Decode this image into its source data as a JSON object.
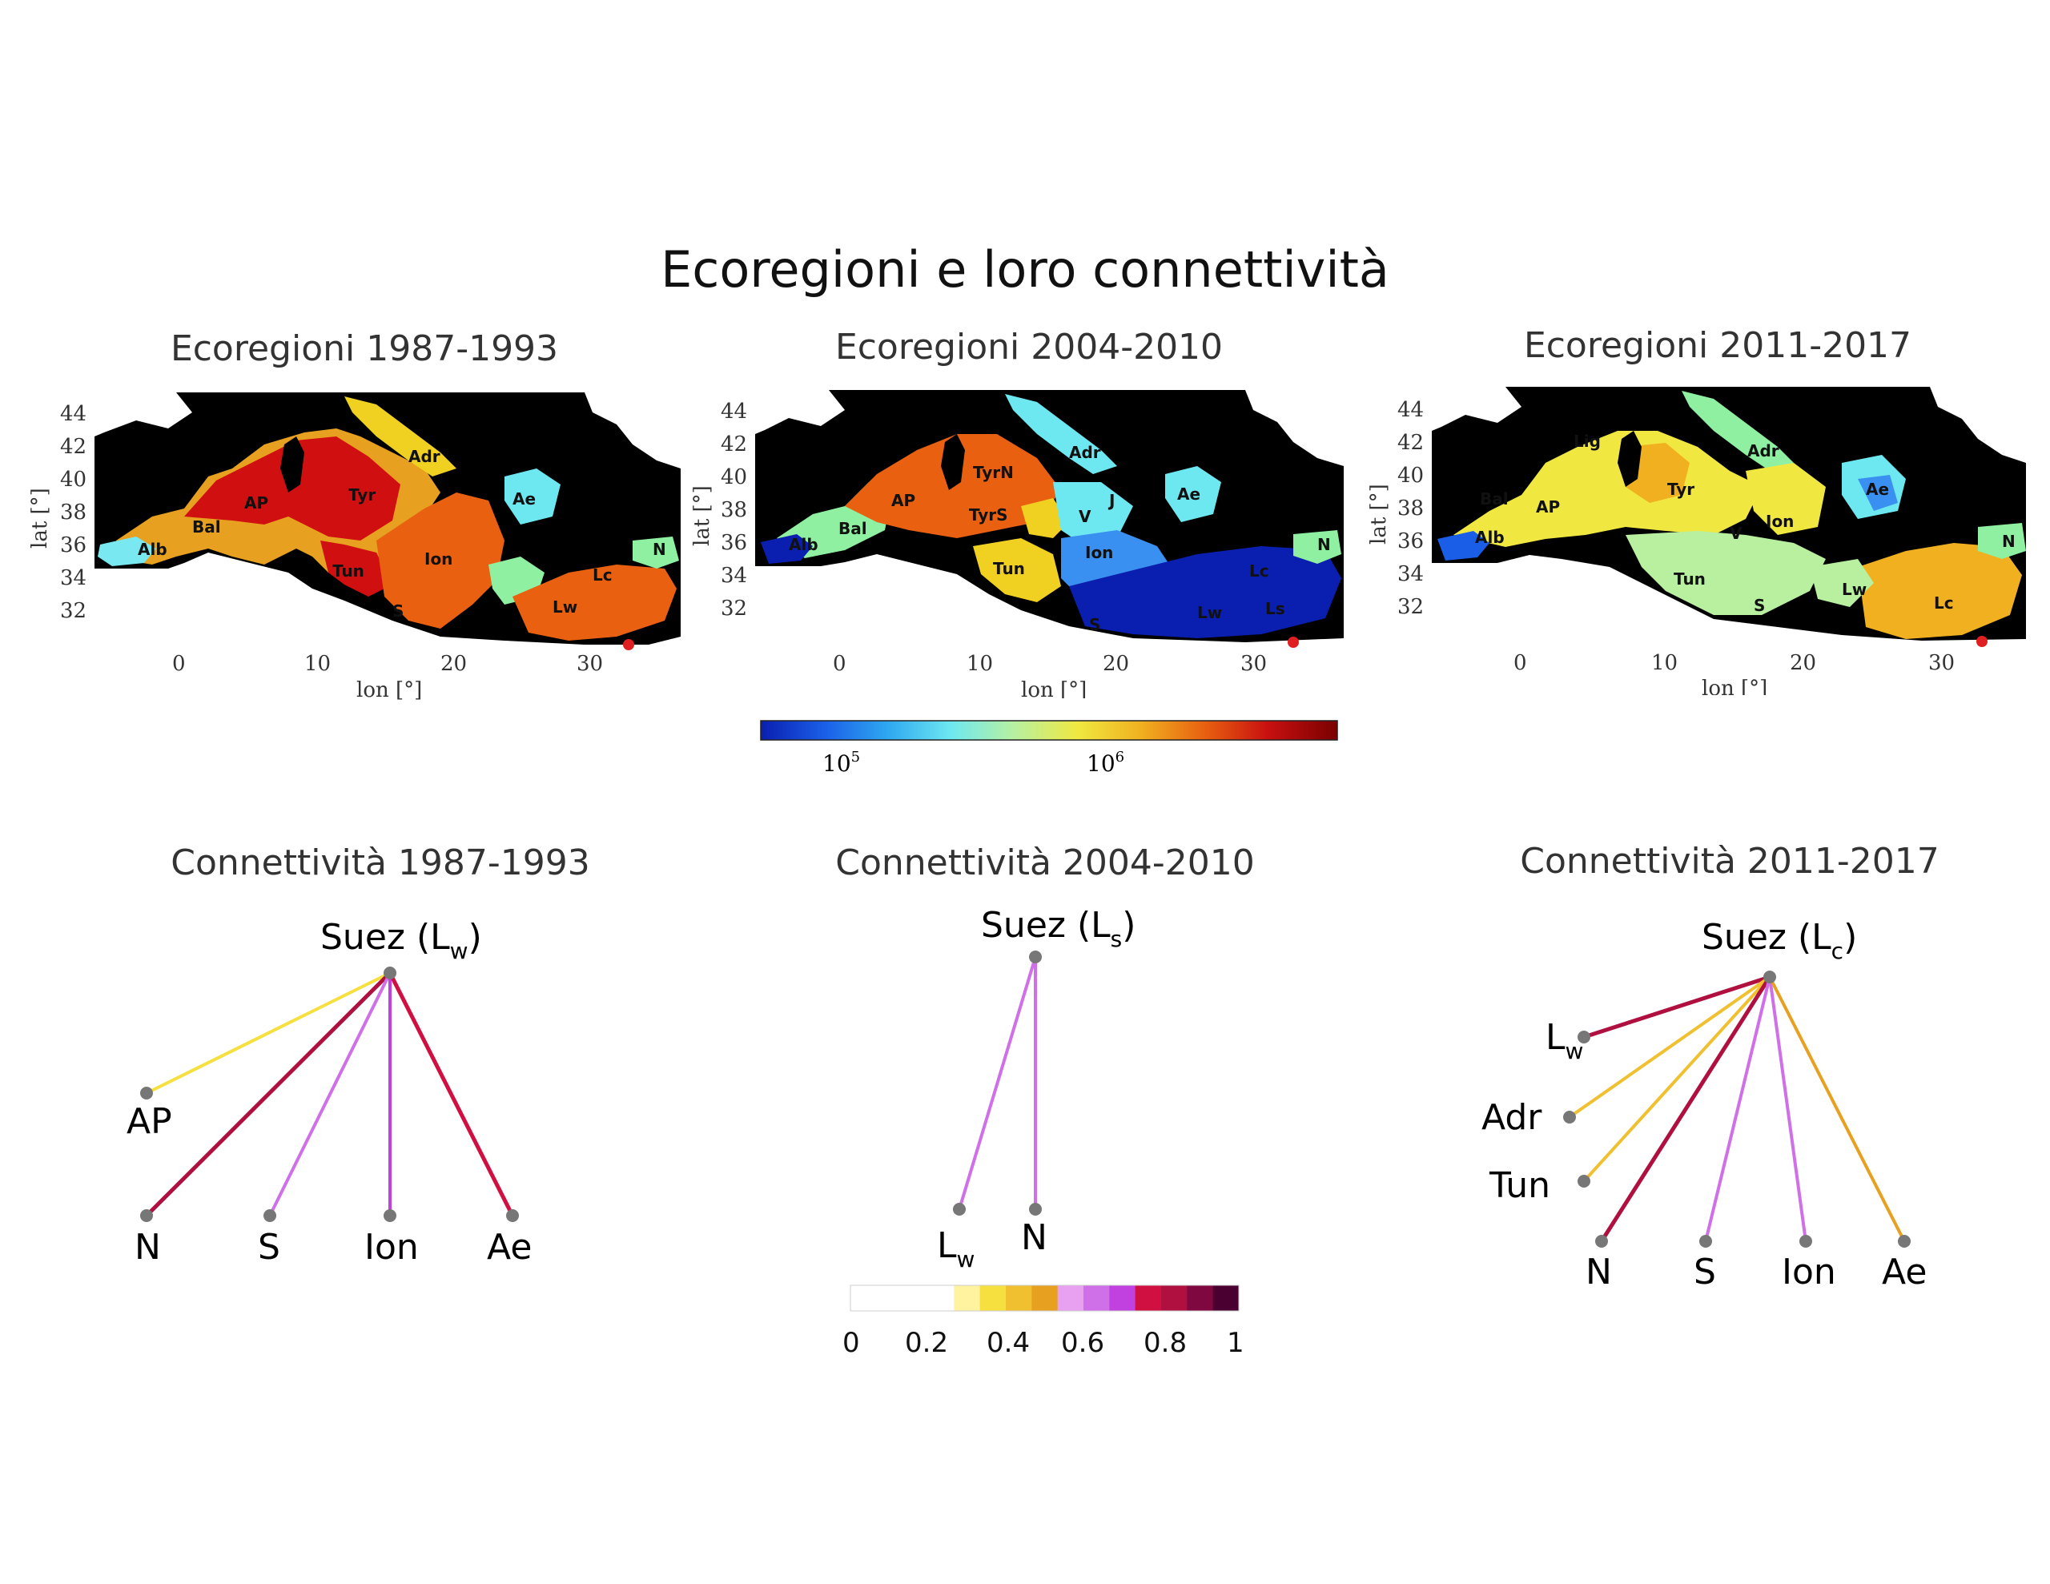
{
  "title": "Ecoregioni e loro connettività",
  "maps": [
    {
      "title": "Ecoregioni 1987-1993",
      "labels": [
        "Alb",
        "Bal",
        "AP",
        "Tyr",
        "Tun",
        "Adr",
        "Ion",
        "S",
        "Ae",
        "Lc",
        "Lw",
        "N"
      ]
    },
    {
      "title": "Ecoregioni 2004-2010",
      "labels": [
        "Alb",
        "Bal",
        "AP",
        "TyrN",
        "TyrS",
        "Adr",
        "V",
        "J",
        "Tun",
        "Ion",
        "Ae",
        "S",
        "Lw",
        "Lc",
        "Ls",
        "N"
      ]
    },
    {
      "title": "Ecoregioni 2011-2017",
      "labels": [
        "Alb",
        "Bal",
        "AP",
        "Lig",
        "Tyr",
        "Adr",
        "V",
        "Ion",
        "Ae",
        "Tun",
        "S",
        "Lw",
        "Lc",
        "N"
      ]
    }
  ],
  "axes": {
    "xlabel": "lon [°]",
    "ylabel": "lat [°]",
    "xticks": [
      "0",
      "10",
      "20",
      "30"
    ],
    "yticks": [
      "44",
      "42",
      "40",
      "38",
      "36",
      "34",
      "32"
    ]
  },
  "colorbar_top": {
    "ticks": [
      "10",
      "10"
    ],
    "exponents": [
      "5",
      "6"
    ],
    "colors": [
      "#0a1fb0",
      "#1a5ee8",
      "#2ea8f0",
      "#6ee8f0",
      "#b8f0a0",
      "#f0e840",
      "#f0b020",
      "#e86010",
      "#c81010",
      "#7a0000"
    ]
  },
  "networks": [
    {
      "title": "Connettività 1987-1993",
      "hub": {
        "name": "Suez (L",
        "sub": "w",
        "close": ")"
      },
      "nodes": [
        {
          "name": "AP",
          "sub": "",
          "weight": 0.35
        },
        {
          "name": "N",
          "sub": "",
          "weight": 0.8
        },
        {
          "name": "S",
          "sub": "",
          "weight": 0.6
        },
        {
          "name": "Ion",
          "sub": "",
          "weight": 0.7
        },
        {
          "name": "Ae",
          "sub": "",
          "weight": 0.75
        }
      ]
    },
    {
      "title": "Connettività 2004-2010",
      "hub": {
        "name": "Suez (L",
        "sub": "s",
        "close": ")"
      },
      "nodes": [
        {
          "name": "L",
          "sub": "w",
          "weight": 0.65
        },
        {
          "name": "N",
          "sub": "",
          "weight": 0.62
        }
      ]
    },
    {
      "title": "Connettività 2011-2017",
      "hub": {
        "name": "Suez (L",
        "sub": "c",
        "close": ")"
      },
      "nodes": [
        {
          "name": "L",
          "sub": "w",
          "weight": 0.8
        },
        {
          "name": "Adr",
          "sub": "",
          "weight": 0.4
        },
        {
          "name": "Tun",
          "sub": "",
          "weight": 0.45
        },
        {
          "name": "N",
          "sub": "",
          "weight": 0.8
        },
        {
          "name": "S",
          "sub": "",
          "weight": 0.65
        },
        {
          "name": "Ion",
          "sub": "",
          "weight": 0.62
        },
        {
          "name": "Ae",
          "sub": "",
          "weight": 0.5
        }
      ]
    }
  ],
  "colorbar_bottom": {
    "ticks": [
      "0",
      "0.2",
      "0.4",
      "0.6",
      "0.8",
      "1"
    ],
    "colors": [
      "#ffffff",
      "#ffffff",
      "#ffffff",
      "#ffffff",
      "#fff3a0",
      "#f5e040",
      "#f0c030",
      "#e8a020",
      "#e8a0f0",
      "#d070e8",
      "#c040e0",
      "#d01040",
      "#b01040",
      "#800840",
      "#4a0030"
    ]
  }
}
